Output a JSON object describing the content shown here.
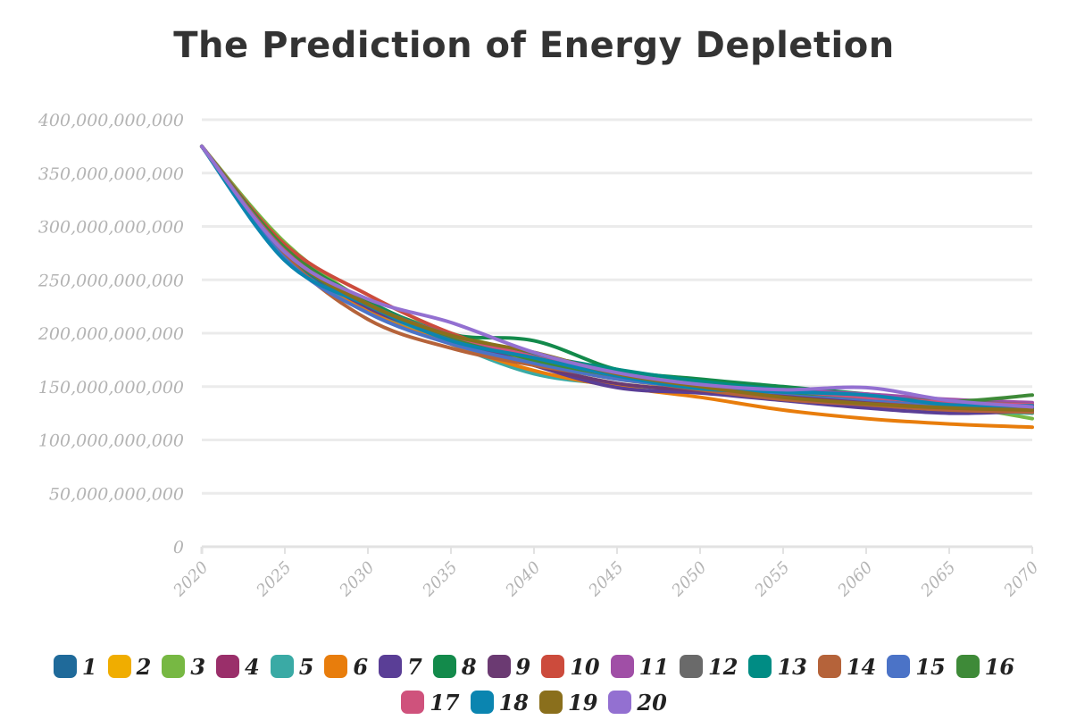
{
  "chart_data": {
    "type": "line",
    "title": "The Prediction of Energy Depletion",
    "xlabel": "",
    "ylabel": "",
    "xlim": [
      2020,
      2070
    ],
    "ylim": [
      0,
      400000000000
    ],
    "x_ticks": [
      "2020",
      "2025",
      "2030",
      "2035",
      "2040",
      "2045",
      "2050",
      "2055",
      "2060",
      "2065",
      "2070"
    ],
    "y_ticks": [
      "0",
      "50,000,000,000",
      "100,000,000,000",
      "150,000,000,000",
      "200,000,000,000",
      "250,000,000,000",
      "300,000,000,000",
      "350,000,000,000",
      "400,000,000,000"
    ],
    "x": [
      2020,
      2025,
      2030,
      2035,
      2040,
      2045,
      2050,
      2055,
      2060,
      2065,
      2070
    ],
    "grid": true,
    "legend_position": "bottom",
    "series": [
      {
        "name": "1",
        "color": "#1f6a9a",
        "values": [
          375000000000,
          272000000000,
          225000000000,
          196000000000,
          178000000000,
          158000000000,
          150000000000,
          143000000000,
          138000000000,
          133000000000,
          130000000000
        ]
      },
      {
        "name": "2",
        "color": "#f0ad00",
        "values": [
          375000000000,
          276000000000,
          224000000000,
          195000000000,
          172000000000,
          157000000000,
          148000000000,
          141000000000,
          135000000000,
          130000000000,
          125000000000
        ]
      },
      {
        "name": "3",
        "color": "#77b843",
        "values": [
          375000000000,
          285000000000,
          229000000000,
          200000000000,
          180000000000,
          163000000000,
          153000000000,
          145000000000,
          140000000000,
          133000000000,
          120000000000
        ]
      },
      {
        "name": "4",
        "color": "#9a2f6a",
        "values": [
          375000000000,
          278000000000,
          227000000000,
          197000000000,
          176000000000,
          158000000000,
          149000000000,
          144000000000,
          138000000000,
          134000000000,
          130000000000
        ]
      },
      {
        "name": "5",
        "color": "#3aaaa5",
        "values": [
          375000000000,
          273000000000,
          222000000000,
          190000000000,
          162000000000,
          152000000000,
          146000000000,
          140000000000,
          133000000000,
          128000000000,
          125000000000
        ]
      },
      {
        "name": "6",
        "color": "#e87d0c",
        "values": [
          375000000000,
          278000000000,
          221000000000,
          190000000000,
          165000000000,
          150000000000,
          140000000000,
          128000000000,
          120000000000,
          115000000000,
          112000000000
        ]
      },
      {
        "name": "7",
        "color": "#5a3e96",
        "values": [
          375000000000,
          275000000000,
          224000000000,
          196000000000,
          170000000000,
          149000000000,
          144000000000,
          137000000000,
          130000000000,
          125000000000,
          127000000000
        ]
      },
      {
        "name": "8",
        "color": "#138a4b",
        "values": [
          375000000000,
          280000000000,
          230000000000,
          199000000000,
          193000000000,
          166000000000,
          157000000000,
          150000000000,
          143000000000,
          137000000000,
          133000000000
        ]
      },
      {
        "name": "9",
        "color": "#6b3a72",
        "values": [
          375000000000,
          275000000000,
          225000000000,
          194000000000,
          170000000000,
          153000000000,
          146000000000,
          141000000000,
          135000000000,
          130000000000,
          127000000000
        ]
      },
      {
        "name": "10",
        "color": "#cc4b3c",
        "values": [
          375000000000,
          283000000000,
          236000000000,
          200000000000,
          175000000000,
          160000000000,
          150000000000,
          146000000000,
          138000000000,
          133000000000,
          130000000000
        ]
      },
      {
        "name": "11",
        "color": "#a04fa6",
        "values": [
          375000000000,
          277000000000,
          228000000000,
          198000000000,
          176000000000,
          160000000000,
          152000000000,
          147000000000,
          143000000000,
          138000000000,
          135000000000
        ]
      },
      {
        "name": "12",
        "color": "#6a6a6a",
        "values": [
          375000000000,
          275000000000,
          226000000000,
          196000000000,
          177000000000,
          160000000000,
          151000000000,
          146000000000,
          140000000000,
          136000000000,
          133000000000
        ]
      },
      {
        "name": "13",
        "color": "#008c84",
        "values": [
          375000000000,
          274000000000,
          228000000000,
          198000000000,
          180000000000,
          166000000000,
          155000000000,
          147000000000,
          140000000000,
          134000000000,
          130000000000
        ]
      },
      {
        "name": "14",
        "color": "#b5633a",
        "values": [
          375000000000,
          273000000000,
          213000000000,
          186000000000,
          170000000000,
          158000000000,
          147000000000,
          138000000000,
          133000000000,
          128000000000,
          126000000000
        ]
      },
      {
        "name": "15",
        "color": "#4b73c7",
        "values": [
          375000000000,
          270000000000,
          219000000000,
          190000000000,
          172000000000,
          157000000000,
          149000000000,
          144000000000,
          138000000000,
          133000000000,
          128000000000
        ]
      },
      {
        "name": "16",
        "color": "#3e8a38",
        "values": [
          375000000000,
          280000000000,
          228000000000,
          197000000000,
          175000000000,
          160000000000,
          150000000000,
          145000000000,
          140000000000,
          136000000000,
          142000000000
        ]
      },
      {
        "name": "17",
        "color": "#cf527c",
        "values": [
          375000000000,
          277000000000,
          227000000000,
          198000000000,
          178000000000,
          160000000000,
          151000000000,
          146000000000,
          140000000000,
          135000000000,
          133000000000
        ]
      },
      {
        "name": "18",
        "color": "#0b85b0",
        "values": [
          375000000000,
          268000000000,
          226000000000,
          193000000000,
          177000000000,
          160000000000,
          148000000000,
          145000000000,
          142000000000,
          133000000000,
          132000000000
        ]
      },
      {
        "name": "19",
        "color": "#8a6f1c",
        "values": [
          375000000000,
          276000000000,
          227000000000,
          198000000000,
          182000000000,
          162000000000,
          150000000000,
          140000000000,
          134000000000,
          130000000000,
          128000000000
        ]
      },
      {
        "name": "20",
        "color": "#9370d1",
        "values": [
          375000000000,
          276000000000,
          232000000000,
          210000000000,
          182000000000,
          163000000000,
          152000000000,
          147000000000,
          149000000000,
          137000000000,
          131000000000
        ]
      }
    ]
  }
}
